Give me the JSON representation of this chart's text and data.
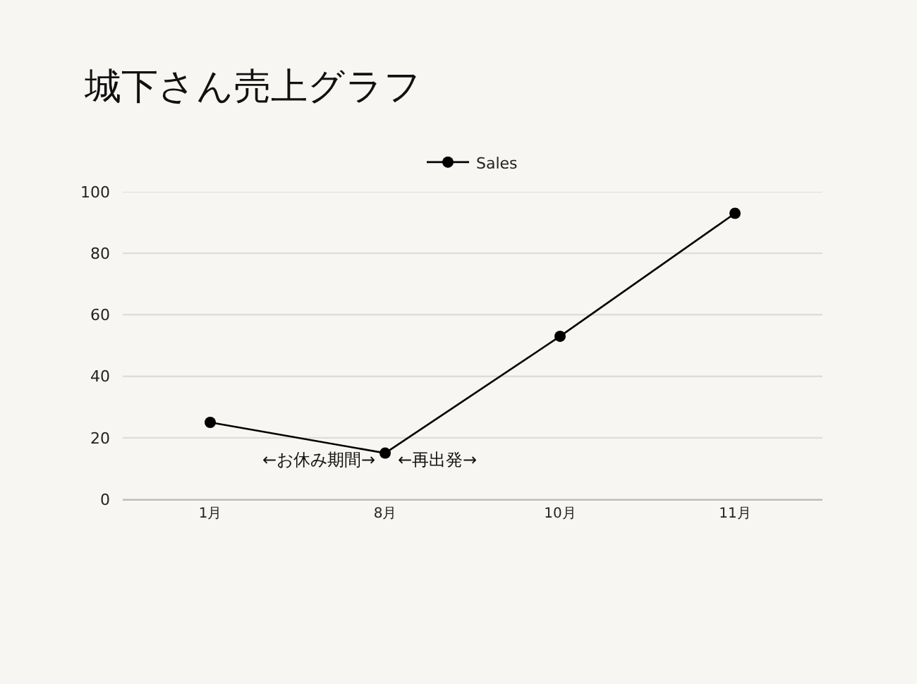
{
  "chart_data": {
    "type": "line",
    "title": "城下さん売上グラフ",
    "categories": [
      "1月",
      "8月",
      "10月",
      "11月"
    ],
    "series": [
      {
        "name": "Sales",
        "color": "#000000",
        "values": [
          25,
          15,
          53,
          93
        ]
      }
    ],
    "ylim": [
      0,
      100
    ],
    "yticks": [
      0,
      20,
      40,
      60,
      80,
      100
    ],
    "grid": "y",
    "legend": "top",
    "marker": "circle",
    "line_style": "solid",
    "annotations": [
      "←お休み期間→",
      "←再出発→"
    ]
  }
}
